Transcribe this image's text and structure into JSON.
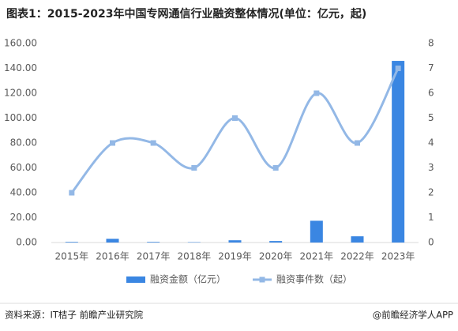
{
  "chart_data": {
    "type": "combo",
    "title": "图表1：2015-2023年中国专网通信行业融资整体情况(单位：亿元，起)",
    "categories": [
      "2015年",
      "2016年",
      "2017年",
      "2018年",
      "2019年",
      "2020年",
      "2021年",
      "2022年",
      "2023年"
    ],
    "series": [
      {
        "name": "融资金额（亿元）",
        "type": "bar",
        "color": "#3a86e2",
        "values": [
          0.5,
          3,
          0.5,
          0.3,
          1.8,
          1.2,
          17.5,
          5,
          146
        ]
      },
      {
        "name": "融资事件数（起）",
        "type": "line",
        "axis": "y2",
        "color": "#93b8e6",
        "values": [
          2,
          4,
          4,
          3,
          5,
          3,
          6,
          4,
          7
        ]
      }
    ],
    "ylim": [
      0,
      160
    ],
    "yticks": [
      {
        "value": 0,
        "label": "0.00"
      },
      {
        "value": 20,
        "label": "20.00"
      },
      {
        "value": 40,
        "label": "40.00"
      },
      {
        "value": 60,
        "label": "60.00"
      },
      {
        "value": 80,
        "label": "80.00"
      },
      {
        "value": 100,
        "label": "100.00"
      },
      {
        "value": 120,
        "label": "120.00"
      },
      {
        "value": 140,
        "label": "140.00"
      },
      {
        "value": 160,
        "label": "160.00"
      }
    ],
    "y2lim": [
      0,
      8
    ],
    "y2ticks": [
      0,
      1,
      2,
      3,
      4,
      5,
      6,
      7,
      8
    ],
    "grid": false,
    "legend": "bottom",
    "source": "资料来源：IT桔子 前瞻产业研究院",
    "credit": "@前瞻经济学人APP"
  }
}
